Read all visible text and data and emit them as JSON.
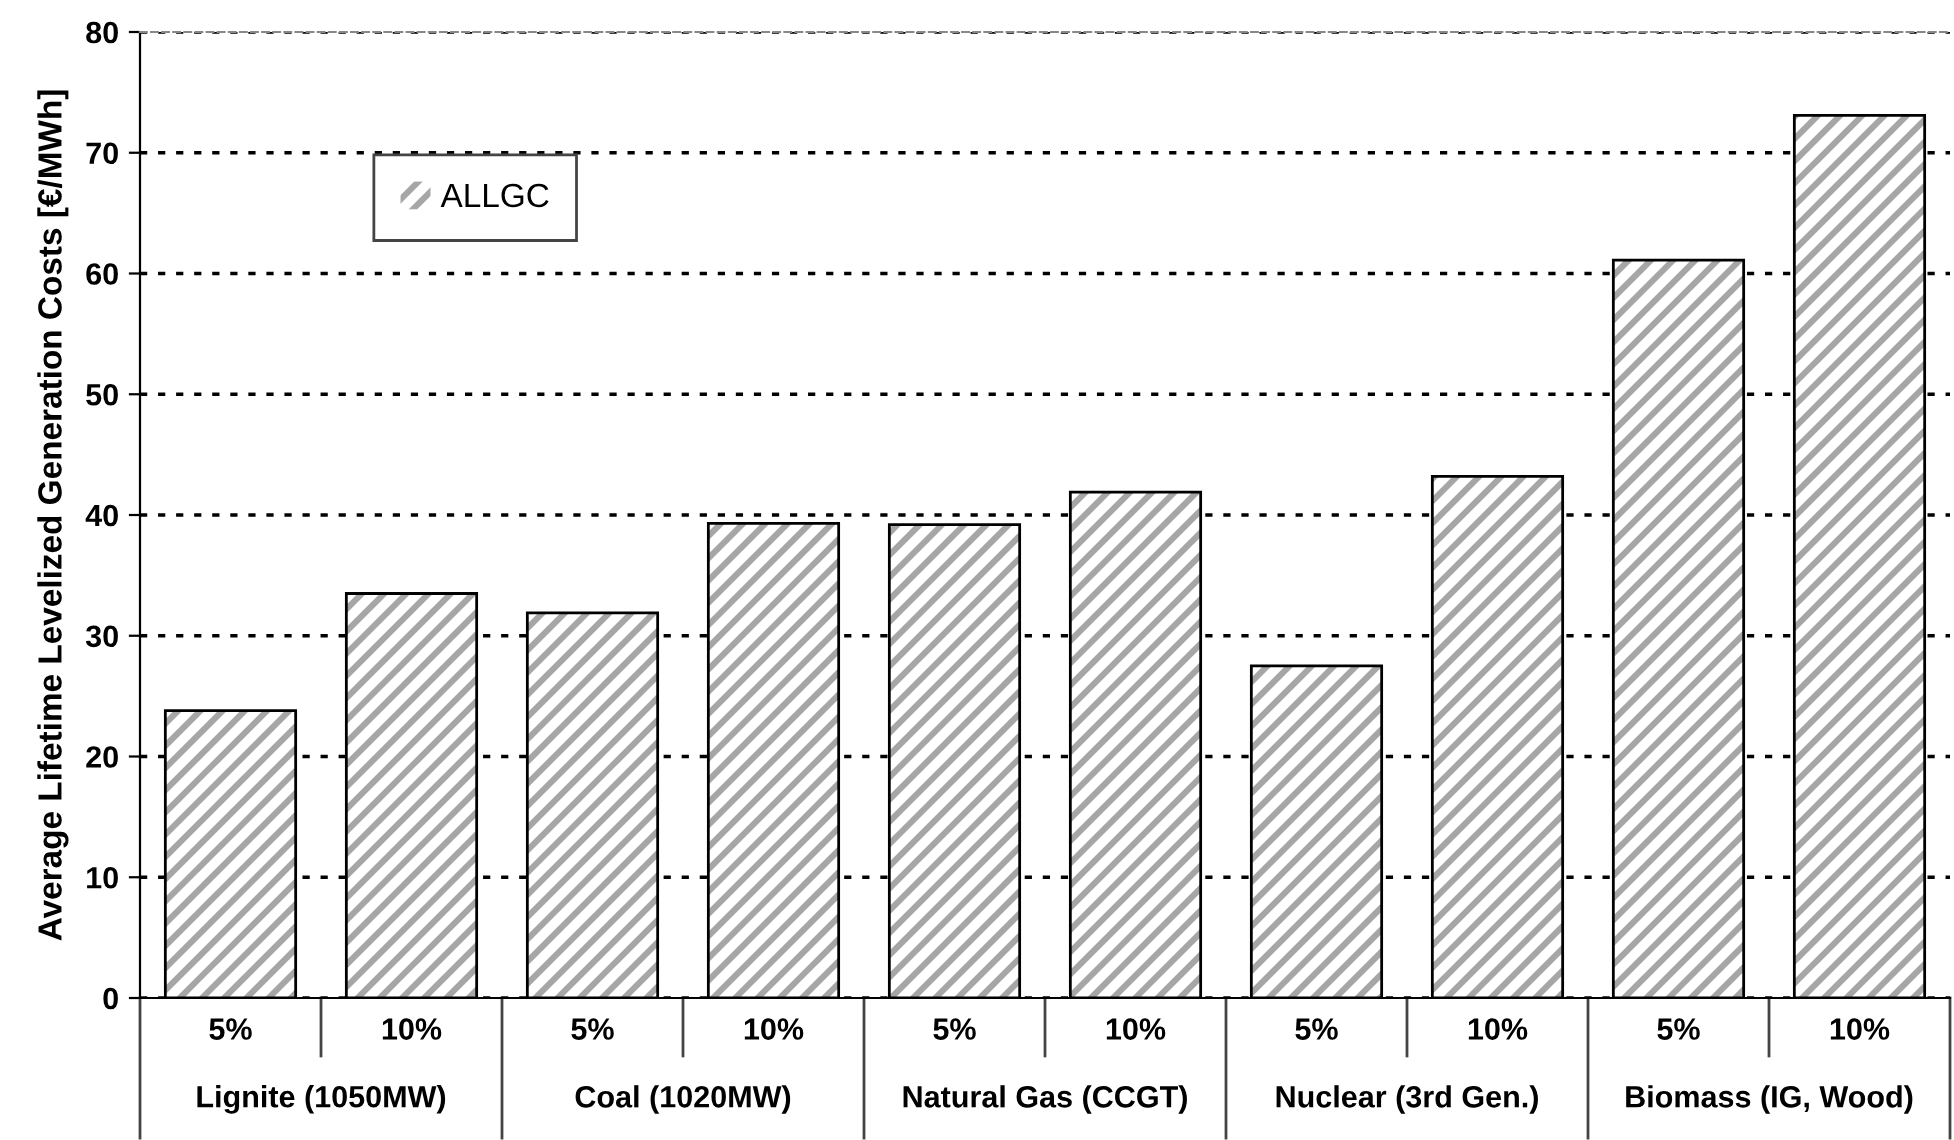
{
  "chart_data": {
    "type": "bar",
    "ylabel": "Average Lifetime Levelized Generation Costs [€/MWh]",
    "categories": [
      "5%",
      "10%",
      "5%",
      "10%",
      "5%",
      "10%",
      "5%",
      "10%",
      "5%",
      "10%"
    ],
    "series": [
      {
        "name": "ALLGC",
        "color": "#a6a6a6",
        "values": [
          23.8,
          33.5,
          31.9,
          39.3,
          39.2,
          41.9,
          27.5,
          43.2,
          61.1,
          73.1
        ]
      }
    ],
    "annotations": [
      "Lignite (1050MW)",
      "Coal (1020MW)",
      "Natural Gas (CCGT)",
      "Nuclear (3rd Gen.)",
      "Biomass (IG, Wood)"
    ],
    "ylim": [
      0,
      80
    ],
    "yticks": [
      0,
      10,
      20,
      30,
      40,
      50,
      60,
      70,
      80
    ],
    "grid": "y",
    "legend": "top left"
  }
}
